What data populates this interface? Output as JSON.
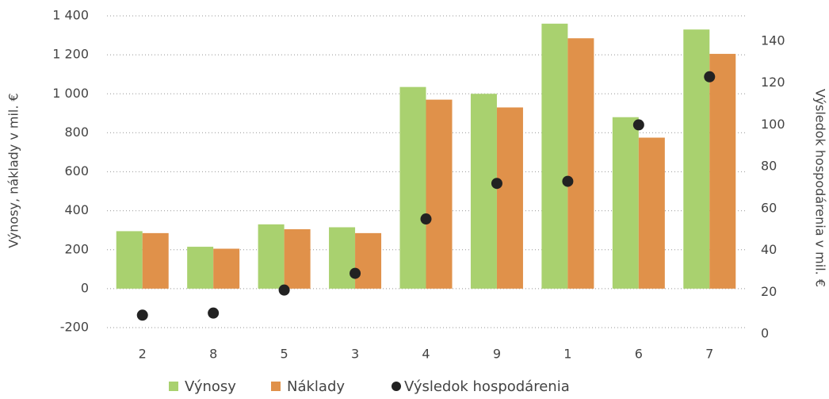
{
  "chart_data": {
    "type": "bar",
    "categories": [
      "2",
      "8",
      "5",
      "3",
      "4",
      "9",
      "1",
      "6",
      "7"
    ],
    "series": [
      {
        "name": "Výnosy",
        "color": "#a9d16f",
        "values": [
          295,
          215,
          330,
          315,
          1035,
          1000,
          1360,
          880,
          1330
        ]
      },
      {
        "name": "Náklady",
        "color": "#e0914a",
        "values": [
          285,
          205,
          305,
          285,
          970,
          930,
          1285,
          775,
          1205
        ]
      },
      {
        "name": "Výsledok hospodárenia",
        "color": "#222222",
        "type": "scatter",
        "axis": "y2",
        "values": [
          9,
          10,
          21,
          29,
          55,
          72,
          73,
          100,
          123
        ]
      }
    ],
    "ylabel": "Výnosy, náklady v mil. €",
    "y2label": "Výsledok hospodárenia v mil. €",
    "ylim": [
      -200,
      1400
    ],
    "yticks": [
      -200,
      0,
      200,
      400,
      600,
      800,
      {
        "value": 1000,
        "label": "1 000"
      },
      {
        "value": 1200,
        "label": "1 200"
      },
      {
        "value": 1400,
        "label": "1 400"
      }
    ],
    "y2lim": [
      0,
      140
    ],
    "y2ticks": [
      0,
      20,
      40,
      60,
      80,
      100,
      120,
      140
    ],
    "grid": true,
    "legend": "bottom"
  }
}
